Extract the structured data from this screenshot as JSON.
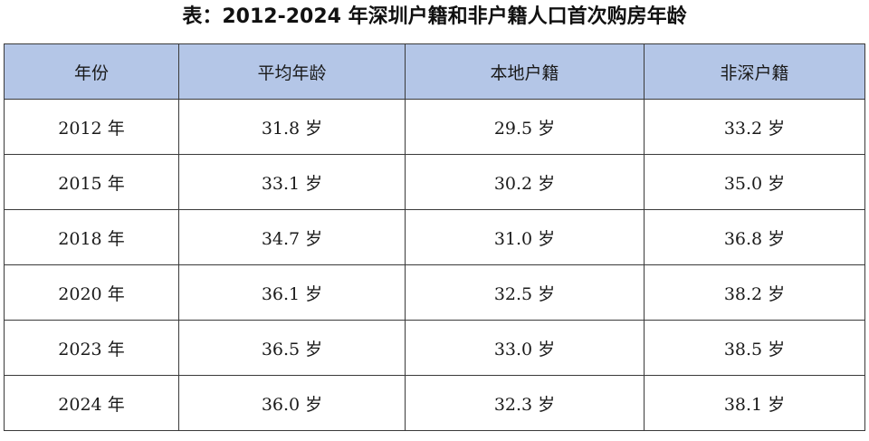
{
  "title": "表：2012-2024 年深圳户籍和非户籍人口首次购房年龄",
  "chart_data": {
    "type": "table",
    "title": "表：2012-2024 年深圳户籍和非户籍人口首次购房年龄",
    "columns": [
      "年份",
      "平均年龄",
      "本地户籍",
      "非深户籍"
    ],
    "rows": [
      [
        "2012 年",
        "31.8 岁",
        "29.5 岁",
        "33.2 岁"
      ],
      [
        "2015 年",
        "33.1 岁",
        "30.2 岁",
        "35.0 岁"
      ],
      [
        "2018 年",
        "34.7 岁",
        "31.0 岁",
        "36.8 岁"
      ],
      [
        "2020 年",
        "36.1 岁",
        "32.5 岁",
        "38.2 岁"
      ],
      [
        "2023 年",
        "36.5 岁",
        "33.0 岁",
        "38.5 岁"
      ],
      [
        "2024 年",
        "36.0 岁",
        "32.3 岁",
        "38.1 岁"
      ]
    ]
  },
  "colors": {
    "header_background": "#b4c6e7",
    "border": "#3a3a3a"
  }
}
